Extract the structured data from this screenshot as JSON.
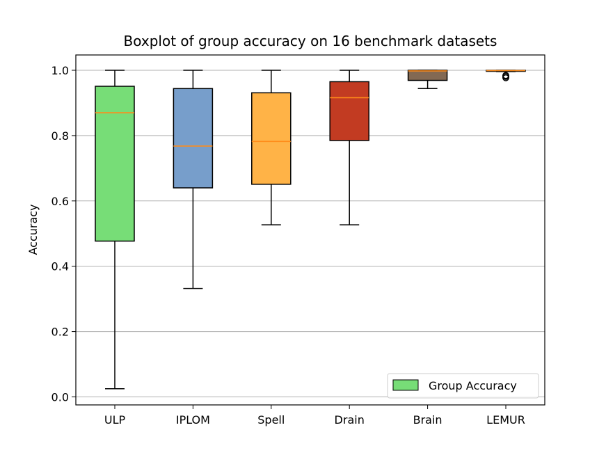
{
  "chart_data": {
    "type": "boxplot",
    "title": "Boxplot of group accuracy on 16 benchmark datasets",
    "xlabel": "",
    "ylabel": "Accuracy",
    "ylim": [
      -0.02,
      1.05
    ],
    "yticks": [
      0.0,
      0.2,
      0.4,
      0.6,
      0.8,
      1.0
    ],
    "ytick_labels": [
      "0.0",
      "0.2",
      "0.4",
      "0.6",
      "0.8",
      "1.0"
    ],
    "grid": "horizontal",
    "legend": {
      "position": "bottom-right",
      "entries": [
        {
          "label": "Group Accuracy",
          "color": "#77dd77"
        }
      ]
    },
    "median_color": "#ff8c1a",
    "categories": [
      "ULP",
      "IPLOM",
      "Spell",
      "Drain",
      "Brain",
      "LEMUR"
    ],
    "boxes": [
      {
        "name": "ULP",
        "whisker_low": 0.025,
        "q1": 0.477,
        "median": 0.87,
        "q3": 0.951,
        "whisker_high": 1.0,
        "color": "#77dd77",
        "outliers": []
      },
      {
        "name": "IPLOM",
        "whisker_low": 0.332,
        "q1": 0.64,
        "median": 0.768,
        "q3": 0.944,
        "whisker_high": 1.0,
        "color": "#779ecb",
        "outliers": []
      },
      {
        "name": "Spell",
        "whisker_low": 0.527,
        "q1": 0.651,
        "median": 0.782,
        "q3": 0.931,
        "whisker_high": 1.0,
        "color": "#ffb347",
        "outliers": []
      },
      {
        "name": "Drain",
        "whisker_low": 0.527,
        "q1": 0.785,
        "median": 0.916,
        "q3": 0.965,
        "whisker_high": 1.0,
        "color": "#c23b22",
        "outliers": []
      },
      {
        "name": "Brain",
        "whisker_low": 0.944,
        "q1": 0.969,
        "median": 0.998,
        "q3": 1.0,
        "whisker_high": 1.0,
        "color": "#836953",
        "outliers": []
      },
      {
        "name": "LEMUR",
        "whisker_low": 0.996,
        "q1": 0.997,
        "median": 0.999,
        "q3": 1.0,
        "whisker_high": 1.0,
        "color": "#8b5a2b",
        "outliers": [
          0.977,
          0.981,
          0.984
        ]
      }
    ]
  }
}
